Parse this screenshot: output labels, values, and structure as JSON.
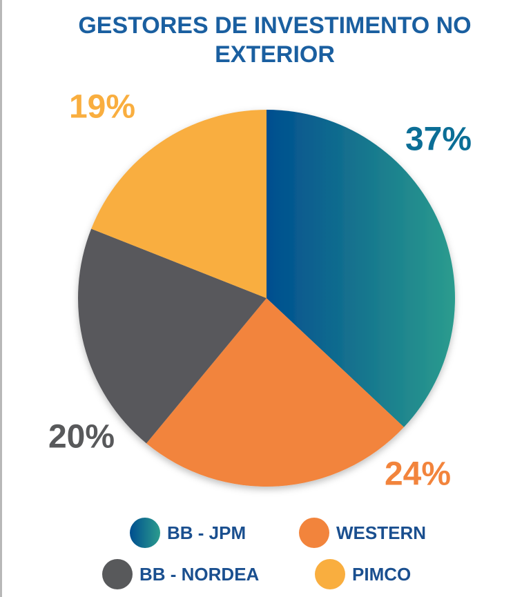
{
  "chart_data": {
    "type": "pie",
    "title": "GESTORES DE INVESTIMENTO NO EXTERIOR",
    "categories": [
      "BB - JPM",
      "WESTERN",
      "BB - NORDEA",
      "PIMCO"
    ],
    "values": [
      37,
      24,
      20,
      19
    ],
    "value_labels": [
      "37%",
      "24%",
      "20%",
      "19%"
    ],
    "colors": [
      [
        "#004e8f",
        "#2b9c8e"
      ],
      "#f2843c",
      "#58595b",
      "#f9ae3f"
    ]
  }
}
